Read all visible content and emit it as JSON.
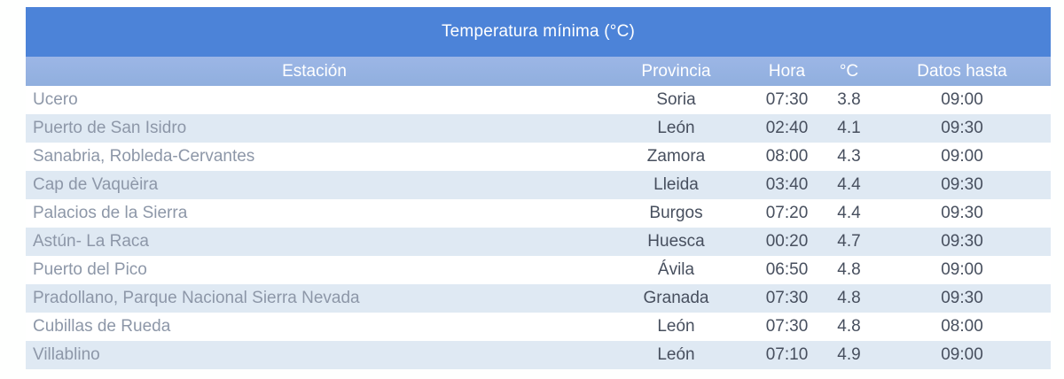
{
  "chart_data": {
    "type": "table",
    "title": "Temperatura mínima (°C)",
    "columns": [
      "Estación",
      "Provincia",
      "Hora",
      "°C",
      "Datos hasta"
    ],
    "rows": [
      [
        "Ucero",
        "Soria",
        "07:30",
        "3.8",
        "09:00"
      ],
      [
        "Puerto de San Isidro",
        "León",
        "02:40",
        "4.1",
        "09:30"
      ],
      [
        "Sanabria, Robleda-Cervantes",
        "Zamora",
        "08:00",
        "4.3",
        "09:00"
      ],
      [
        "Cap de Vaquèira",
        "Lleida",
        "03:40",
        "4.4",
        "09:30"
      ],
      [
        "Palacios de la Sierra",
        "Burgos",
        "07:20",
        "4.4",
        "09:30"
      ],
      [
        "Astún- La Raca",
        "Huesca",
        "00:20",
        "4.7",
        "09:30"
      ],
      [
        "Puerto del Pico",
        "Ávila",
        "06:50",
        "4.8",
        "09:00"
      ],
      [
        "Pradollano, Parque Nacional Sierra Nevada",
        "Granada",
        "07:30",
        "4.8",
        "09:30"
      ],
      [
        "Cubillas de Rueda",
        "León",
        "07:30",
        "4.8",
        "08:00"
      ],
      [
        "Villablino",
        "León",
        "07:10",
        "4.9",
        "09:00"
      ]
    ],
    "layout": {
      "zebra_striping": true,
      "first_data_row_background": "white",
      "station_column_alignment": "left",
      "other_columns_alignment": "center"
    }
  },
  "colors": {
    "title_bg": "#4c83d8",
    "header_bg": "#90afde",
    "header_bg_top": "#9cb6e6",
    "header_text": "#ffffff",
    "row_alt_bg": "#dfe9f3",
    "station_text": "#8d97a8",
    "data_text": "#474f5e"
  }
}
